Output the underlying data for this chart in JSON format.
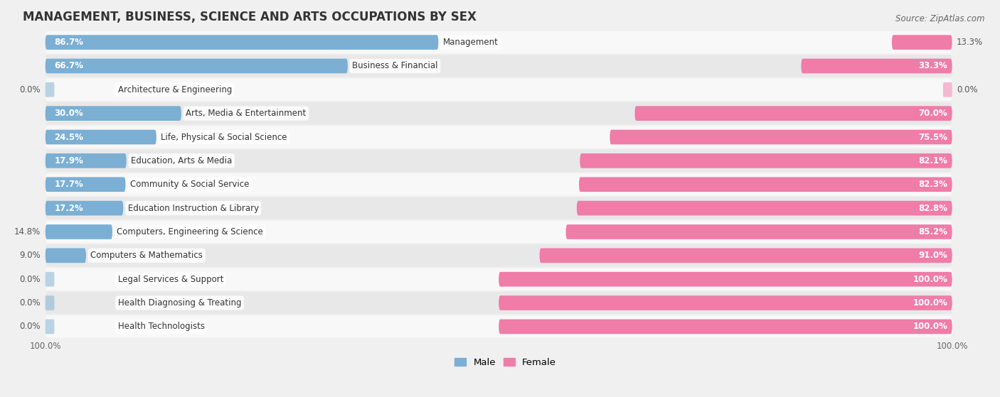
{
  "title": "MANAGEMENT, BUSINESS, SCIENCE AND ARTS OCCUPATIONS BY SEX",
  "source": "Source: ZipAtlas.com",
  "categories": [
    "Management",
    "Business & Financial",
    "Architecture & Engineering",
    "Arts, Media & Entertainment",
    "Life, Physical & Social Science",
    "Education, Arts & Media",
    "Community & Social Service",
    "Education Instruction & Library",
    "Computers, Engineering & Science",
    "Computers & Mathematics",
    "Legal Services & Support",
    "Health Diagnosing & Treating",
    "Health Technologists"
  ],
  "male": [
    86.7,
    66.7,
    0.0,
    30.0,
    24.5,
    17.9,
    17.7,
    17.2,
    14.8,
    9.0,
    0.0,
    0.0,
    0.0
  ],
  "female": [
    13.3,
    33.3,
    0.0,
    70.0,
    75.5,
    82.1,
    82.3,
    82.8,
    85.2,
    91.0,
    100.0,
    100.0,
    100.0
  ],
  "male_color": "#7bafd4",
  "female_color": "#f07ca8",
  "male_label": "Male",
  "female_label": "Female",
  "bg_color": "#f0f0f0",
  "row_bg_light": "#f8f8f8",
  "row_bg_dark": "#e8e8e8",
  "bar_height": 0.62,
  "title_fontsize": 12,
  "label_fontsize": 8.5,
  "value_fontsize": 8.5,
  "tick_fontsize": 8.5,
  "x_min": -100,
  "x_max": 100
}
